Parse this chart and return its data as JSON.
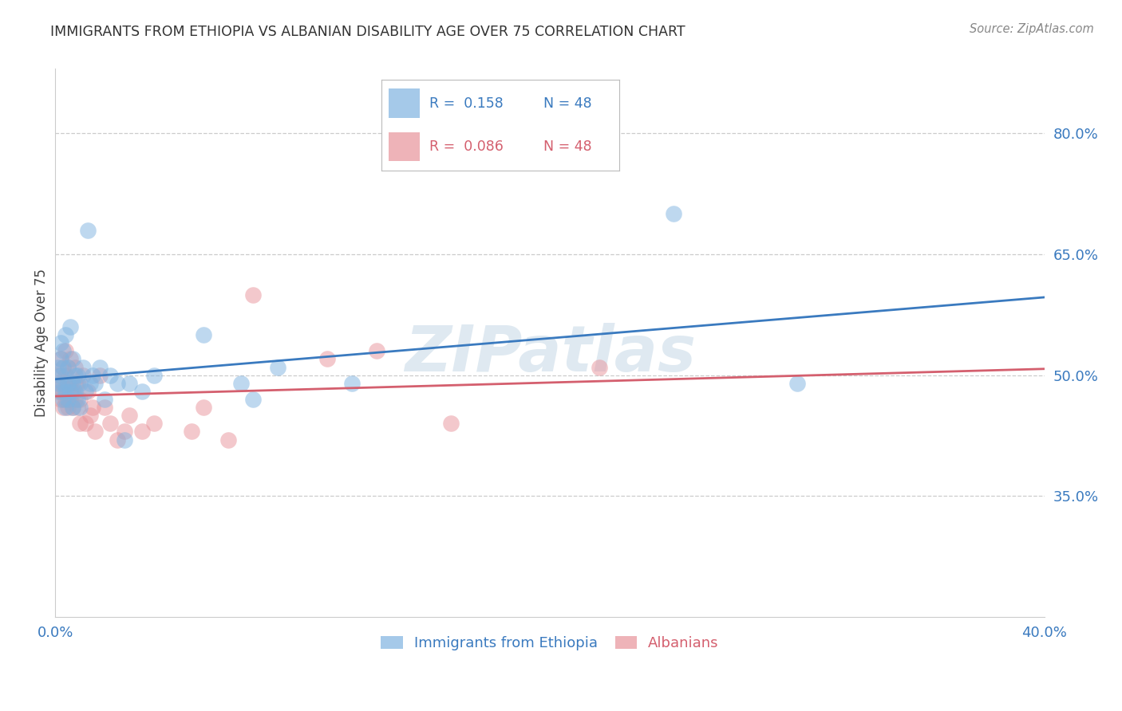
{
  "title": "IMMIGRANTS FROM ETHIOPIA VS ALBANIAN DISABILITY AGE OVER 75 CORRELATION CHART",
  "source": "Source: ZipAtlas.com",
  "ylabel": "Disability Age Over 75",
  "ytick_values": [
    0.8,
    0.65,
    0.5,
    0.35
  ],
  "blue_color": "#7fb3e0",
  "pink_color": "#e8939a",
  "blue_line_color": "#3a7abf",
  "pink_line_color": "#d45f6e",
  "blue_legend_color": "#7fb3e0",
  "pink_legend_color": "#e8939a",
  "background_color": "#ffffff",
  "grid_color": "#cccccc",
  "title_color": "#333333",
  "watermark": "ZIPatlas",
  "R_ethiopia": 0.158,
  "R_albania": 0.086,
  "N": 48,
  "ethiopia_x": [
    0.001,
    0.001,
    0.002,
    0.002,
    0.002,
    0.002,
    0.003,
    0.003,
    0.003,
    0.003,
    0.004,
    0.004,
    0.004,
    0.005,
    0.005,
    0.005,
    0.006,
    0.006,
    0.007,
    0.007,
    0.007,
    0.008,
    0.008,
    0.009,
    0.009,
    0.01,
    0.01,
    0.011,
    0.012,
    0.013,
    0.014,
    0.015,
    0.016,
    0.018,
    0.02,
    0.022,
    0.025,
    0.028,
    0.03,
    0.035,
    0.04,
    0.06,
    0.075,
    0.08,
    0.09,
    0.12,
    0.25,
    0.3
  ],
  "ethiopia_y": [
    0.49,
    0.51,
    0.48,
    0.5,
    0.52,
    0.54,
    0.47,
    0.49,
    0.51,
    0.53,
    0.46,
    0.48,
    0.55,
    0.47,
    0.49,
    0.51,
    0.48,
    0.56,
    0.46,
    0.49,
    0.52,
    0.48,
    0.5,
    0.47,
    0.5,
    0.46,
    0.49,
    0.51,
    0.48,
    0.68,
    0.49,
    0.5,
    0.49,
    0.51,
    0.47,
    0.5,
    0.49,
    0.42,
    0.49,
    0.48,
    0.5,
    0.55,
    0.49,
    0.47,
    0.51,
    0.49,
    0.7,
    0.49
  ],
  "albania_x": [
    0.001,
    0.001,
    0.002,
    0.002,
    0.002,
    0.003,
    0.003,
    0.003,
    0.004,
    0.004,
    0.004,
    0.005,
    0.005,
    0.005,
    0.006,
    0.006,
    0.006,
    0.007,
    0.007,
    0.008,
    0.008,
    0.008,
    0.009,
    0.009,
    0.01,
    0.01,
    0.011,
    0.012,
    0.013,
    0.014,
    0.015,
    0.016,
    0.018,
    0.02,
    0.022,
    0.025,
    0.028,
    0.03,
    0.035,
    0.04,
    0.055,
    0.06,
    0.07,
    0.08,
    0.11,
    0.13,
    0.16,
    0.22
  ],
  "albania_y": [
    0.48,
    0.5,
    0.47,
    0.49,
    0.52,
    0.46,
    0.48,
    0.51,
    0.47,
    0.5,
    0.53,
    0.46,
    0.49,
    0.51,
    0.47,
    0.49,
    0.52,
    0.46,
    0.48,
    0.47,
    0.49,
    0.51,
    0.46,
    0.49,
    0.47,
    0.44,
    0.5,
    0.44,
    0.48,
    0.45,
    0.46,
    0.43,
    0.5,
    0.46,
    0.44,
    0.42,
    0.43,
    0.45,
    0.43,
    0.44,
    0.43,
    0.46,
    0.42,
    0.6,
    0.52,
    0.53,
    0.44,
    0.51
  ]
}
